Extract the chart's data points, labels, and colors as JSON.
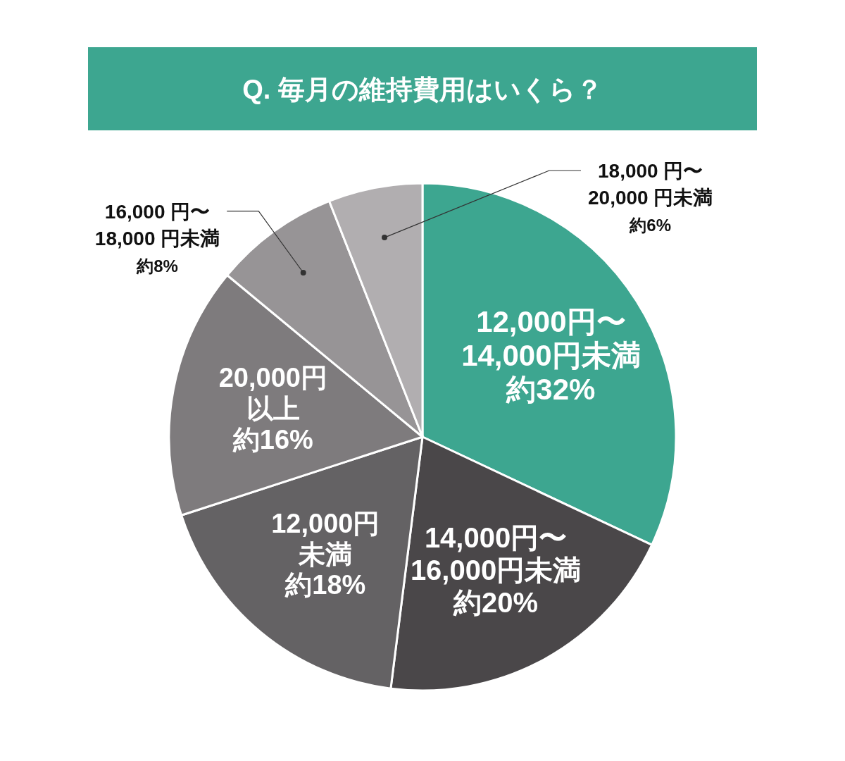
{
  "chart_data": {
    "type": "pie",
    "title": "Q. 毎月の維持費用はいくら？",
    "categories": [
      "12,000円〜14,000円未満",
      "14,000円〜16,000円未満",
      "12,000円未満",
      "20,000円以上",
      "16,000 円〜18,000 円未満",
      "18,000 円〜20,000 円未満"
    ],
    "values": [
      32,
      20,
      18,
      16,
      8,
      6
    ],
    "value_labels": [
      "約32%",
      "約20%",
      "約18%",
      "約16%",
      "約8%",
      "約6%"
    ],
    "colors": [
      "#3da690",
      "#4a4749",
      "#646264",
      "#7e7b7d",
      "#979496",
      "#b1aeb0"
    ],
    "legend": false
  }
}
